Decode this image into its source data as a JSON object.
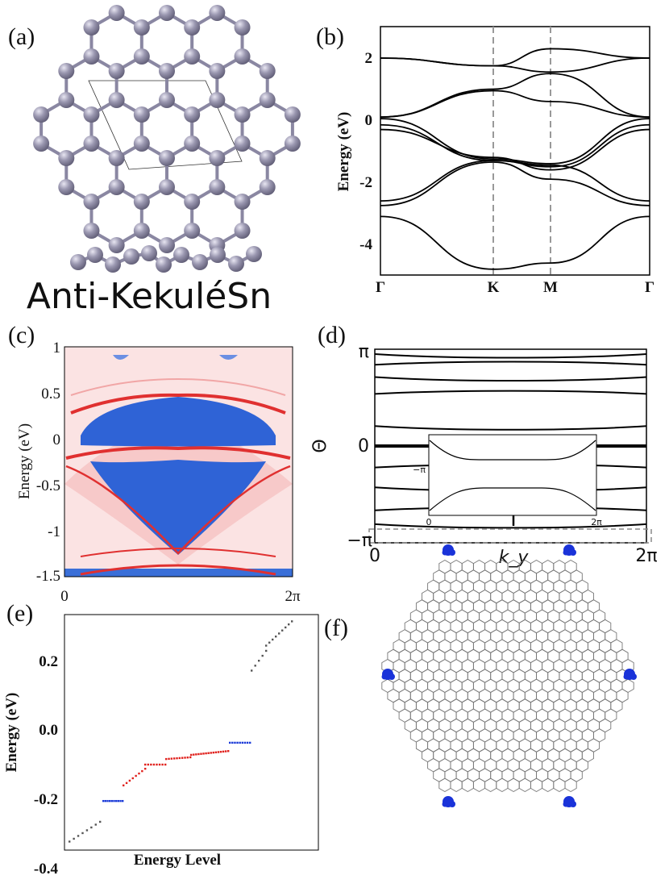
{
  "figure": {
    "panel_labels": [
      "(a)",
      "(b)",
      "(c)",
      "(d)",
      "(e)",
      "(f)"
    ],
    "structure_label": "Anti-KekuléSn",
    "atom_color": "#9a97b0",
    "bond_color": "#8a87a2"
  },
  "chart_data": [
    {
      "panel": "(b)",
      "type": "line",
      "ylabel": "Energy (eV)",
      "xticks": [
        "Γ",
        "K",
        "M",
        "Γ"
      ],
      "yticks": [
        "2",
        "0",
        "-2",
        "-4"
      ],
      "ylim": [
        -5,
        3
      ],
      "grid": false,
      "series": [
        {
          "x": [
            0,
            1,
            1.55,
            2.6
          ],
          "y": [
            2.0,
            1.75,
            2.3,
            2.0
          ]
        },
        {
          "x": [
            0,
            1,
            1.55,
            2.6
          ],
          "y": [
            2.0,
            1.75,
            1.55,
            2.0
          ]
        },
        {
          "x": [
            0,
            1,
            1.55,
            2.6
          ],
          "y": [
            0.1,
            1.0,
            1.5,
            0.1
          ]
        },
        {
          "x": [
            0,
            1,
            1.55,
            2.6
          ],
          "y": [
            0.1,
            0.95,
            0.6,
            0.1
          ]
        },
        {
          "x": [
            0,
            1,
            1.55,
            2.6
          ],
          "y": [
            0.05,
            -1.25,
            -1.4,
            0.05
          ]
        },
        {
          "x": [
            0,
            1,
            1.55,
            2.6
          ],
          "y": [
            -0.15,
            -1.3,
            -1.5,
            -0.15
          ]
        },
        {
          "x": [
            0,
            1,
            1.55,
            2.6
          ],
          "y": [
            -0.3,
            -1.2,
            -1.6,
            -0.3
          ]
        },
        {
          "x": [
            0,
            1,
            1.55,
            2.6
          ],
          "y": [
            -2.6,
            -1.3,
            -1.45,
            -2.6
          ]
        },
        {
          "x": [
            0,
            1,
            1.55,
            2.6
          ],
          "y": [
            -2.75,
            -1.35,
            -1.9,
            -2.75
          ]
        },
        {
          "x": [
            0,
            1,
            1.55,
            2.6
          ],
          "y": [
            -3.1,
            -4.8,
            -4.6,
            -3.1
          ]
        }
      ]
    },
    {
      "panel": "(c)",
      "type": "heatmap",
      "ylabel": "Energy (eV)",
      "xticks": [
        "0",
        "2π"
      ],
      "yticks": [
        "1",
        "0.5",
        "0",
        "-0.5",
        "-1",
        "-1.5"
      ],
      "ylim": [
        -1.5,
        1
      ],
      "colors": {
        "positive": "#e84545",
        "negative": "#3a6fd8",
        "zero": "#ffffff"
      }
    },
    {
      "panel": "(d)",
      "type": "line",
      "ylabel": "Θ",
      "xlabel": "k_y",
      "xticks": [
        "0",
        "2π"
      ],
      "yticks": [
        "π",
        "0",
        "−π"
      ],
      "inset": {
        "xticks": [
          "0",
          "2π"
        ],
        "yticks": [
          "−π"
        ]
      },
      "series_y": [
        3.0,
        2.65,
        2.25,
        1.7,
        0.65,
        -0.7,
        -1.35,
        -2.1,
        -2.55
      ]
    },
    {
      "panel": "(e)",
      "type": "scatter",
      "ylabel": "Energy (eV)",
      "xlabel": "Energy Level",
      "yticks": [
        "0.2",
        "0.0",
        "-0.2",
        "-0.4"
      ],
      "ylim": [
        -0.4,
        0.28
      ],
      "colors": {
        "gray": "#555555",
        "red": "#e0201c",
        "blue": "#1a3ad8"
      }
    },
    {
      "panel": "(f)",
      "type": "other",
      "edge_state_color": "#1a33d9",
      "lattice_color": "#777777"
    }
  ]
}
